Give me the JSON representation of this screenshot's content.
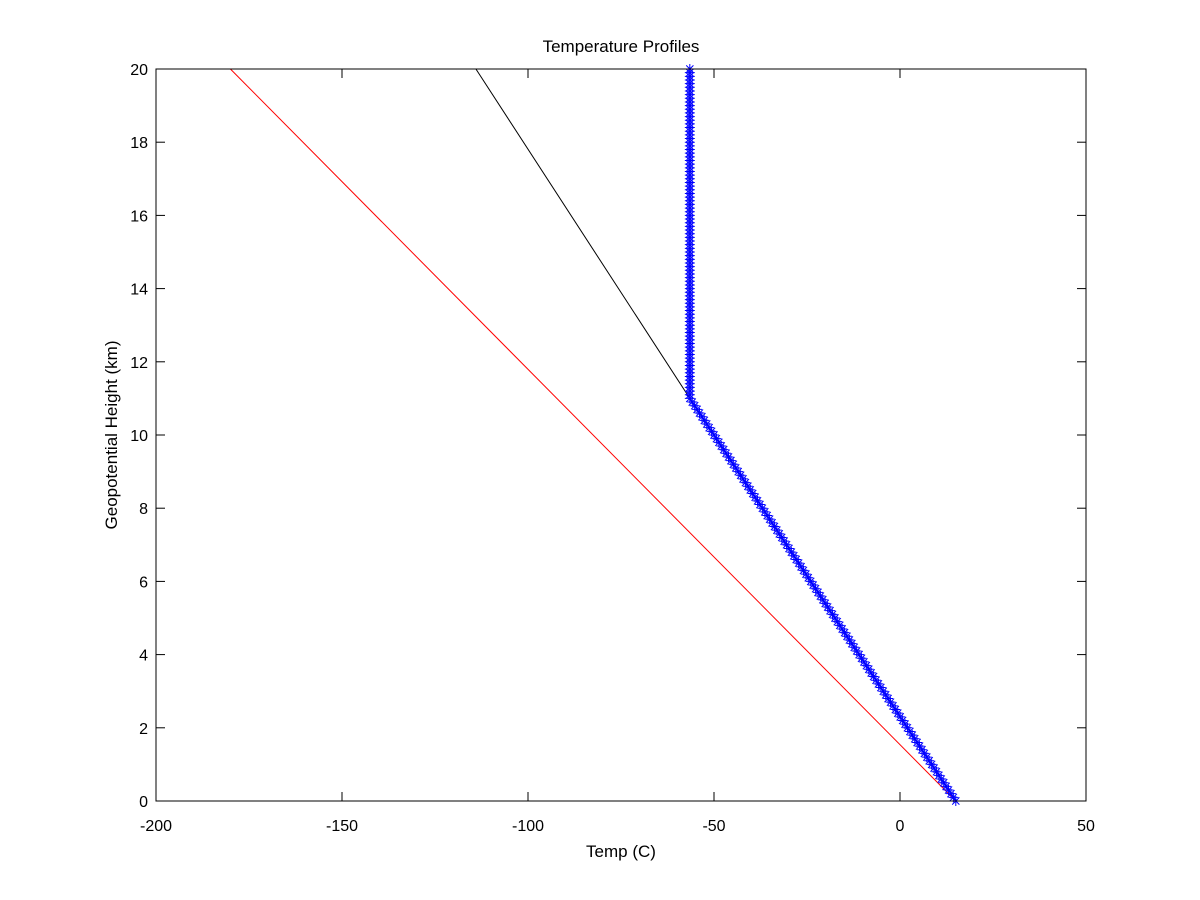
{
  "chart_data": {
    "type": "line",
    "title": "Temperature Profiles",
    "xlabel": "Temp (C)",
    "ylabel": "Geopotential Height (km)",
    "xlim": [
      -200,
      50
    ],
    "ylim": [
      0,
      20
    ],
    "xticks": [
      -200,
      -150,
      -100,
      -50,
      0,
      50
    ],
    "yticks": [
      0,
      2,
      4,
      6,
      8,
      10,
      12,
      14,
      16,
      18,
      20
    ],
    "grid": false,
    "legend": "none",
    "series": [
      {
        "color": "#ff0000",
        "style": "solid",
        "x": [
          15,
          -180
        ],
        "y": [
          0,
          20
        ]
      },
      {
        "color": "#000000",
        "style": "solid",
        "x": [
          15,
          -56.5,
          -114
        ],
        "y": [
          0,
          11,
          20
        ]
      },
      {
        "color": "#0000ff",
        "style": "solid-with-asterisk-markers",
        "marker": "asterisk",
        "marker_step_km": 0.1,
        "x": [
          15,
          -56.5,
          -56.5
        ],
        "y": [
          0,
          11,
          20
        ]
      }
    ]
  }
}
